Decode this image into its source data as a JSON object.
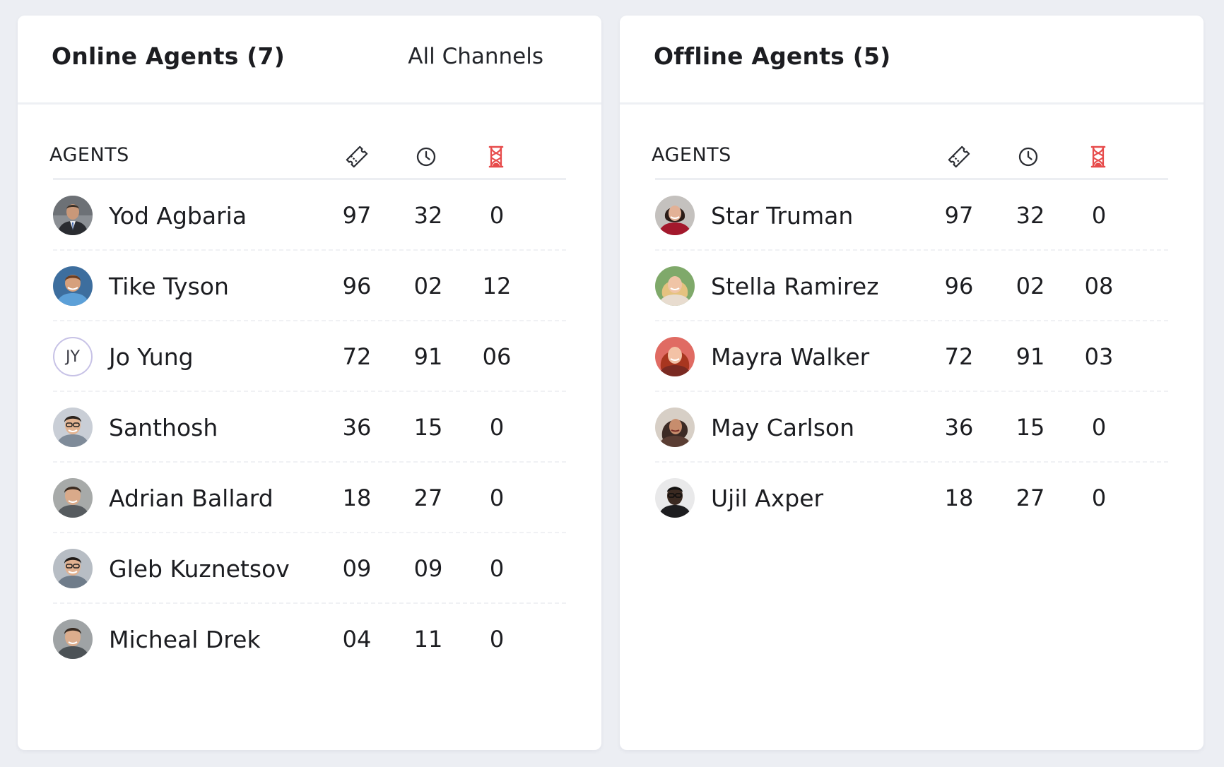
{
  "accent_color": "#e74c4c",
  "online": {
    "title": "Online Agents (7)",
    "channel_filter": "All Channels",
    "header": {
      "agents_label": "AGENTS",
      "icons": [
        "ticket-icon",
        "clock-icon",
        "hourglass-icon"
      ]
    },
    "rows": [
      {
        "name": "Yod Agbaria",
        "tickets": "97",
        "time": "32",
        "pending": "0"
      },
      {
        "name": "Tike Tyson",
        "tickets": "96",
        "time": "02",
        "pending": "12"
      },
      {
        "name": "Jo Yung",
        "initials": "JY",
        "tickets": "72",
        "time": "91",
        "pending": "06"
      },
      {
        "name": "Santhosh",
        "tickets": "36",
        "time": "15",
        "pending": "0"
      },
      {
        "name": "Adrian Ballard",
        "tickets": "18",
        "time": "27",
        "pending": "0"
      },
      {
        "name": "Gleb Kuznetsov",
        "tickets": "09",
        "time": "09",
        "pending": "0"
      },
      {
        "name": "Micheal Drek",
        "tickets": "04",
        "time": "11",
        "pending": "0"
      }
    ]
  },
  "offline": {
    "title": "Offline Agents (5)",
    "header": {
      "agents_label": "AGENTS",
      "icons": [
        "ticket-icon",
        "clock-icon",
        "hourglass-icon"
      ]
    },
    "rows": [
      {
        "name": "Star Truman",
        "tickets": "97",
        "time": "32",
        "pending": "0"
      },
      {
        "name": "Stella Ramirez",
        "tickets": "96",
        "time": "02",
        "pending": "08"
      },
      {
        "name": "Mayra Walker",
        "tickets": "72",
        "time": "91",
        "pending": "03"
      },
      {
        "name": "May Carlson",
        "tickets": "36",
        "time": "15",
        "pending": "0"
      },
      {
        "name": "Ujil Axper",
        "tickets": "18",
        "time": "27",
        "pending": "0"
      }
    ]
  }
}
